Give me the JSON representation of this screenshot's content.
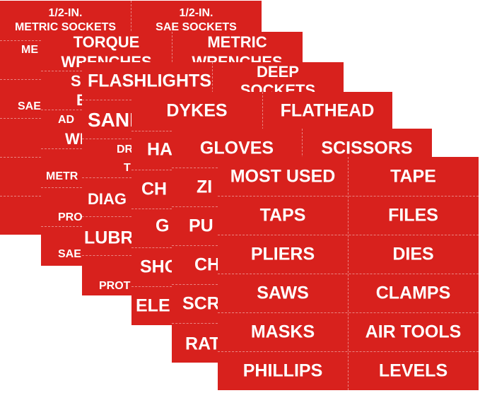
{
  "colors": {
    "label_red": "#d8211d",
    "text": "#ffffff"
  },
  "sheets": [
    {
      "labels": [
        "1/2-IN.",
        "METRIC SOCKETS",
        "1/2-IN.",
        "SAE SOCKETS",
        "ME",
        "SAE"
      ]
    },
    {
      "labels": [
        "TORQUE",
        "WRENCHES",
        "METRIC",
        "WRENCHES",
        "S",
        "E",
        "AD",
        "WR",
        "METR",
        "PRO",
        "SAE"
      ]
    },
    {
      "labels": [
        "FLASHLIGHTS",
        "DEEP",
        "SOCKETS",
        "SANI",
        "DR",
        "T",
        "DIAG",
        "LUBR",
        "PROT"
      ]
    },
    {
      "labels": [
        "DYKES",
        "FLATHEAD",
        "HA",
        "CH",
        "G",
        "SHO",
        "ELE"
      ]
    },
    {
      "labels": [
        "GLOVES",
        "SCISSORS",
        "ZI",
        "PU",
        "CH",
        "SCR",
        "RAT"
      ]
    },
    {
      "rows": [
        {
          "left": "MOST USED",
          "right": "TAPE"
        },
        {
          "left": "TAPS",
          "right": "FILES"
        },
        {
          "left": "PLIERS",
          "right": "DIES"
        },
        {
          "left": "SAWS",
          "right": "CLAMPS"
        },
        {
          "left": "MASKS",
          "right": "AIR TOOLS"
        },
        {
          "left": "PHILLIPS",
          "right": "LEVELS"
        }
      ]
    }
  ]
}
